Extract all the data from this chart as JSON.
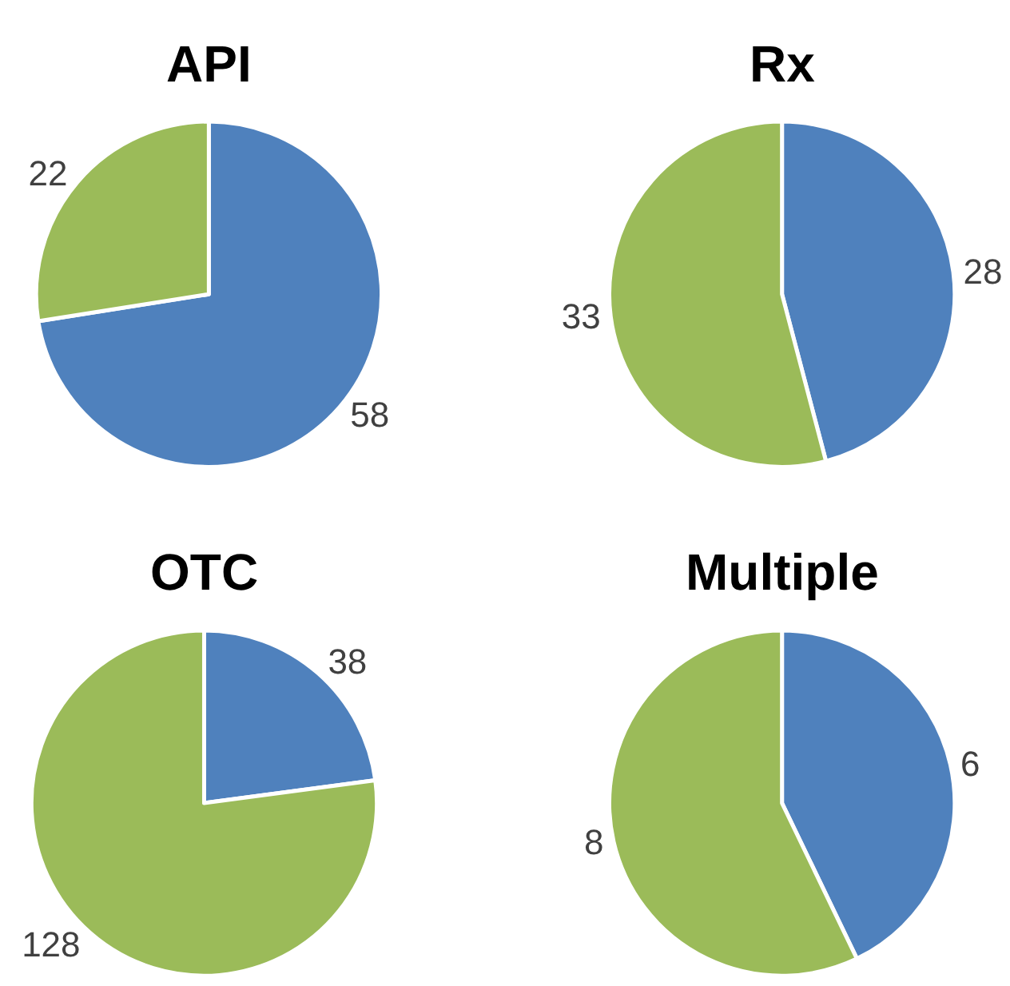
{
  "chart_data": [
    {
      "type": "pie",
      "title": "API",
      "categories": [
        null,
        null
      ],
      "values": [
        58,
        22
      ],
      "colors": [
        "#4f81bd",
        "#9bbb59"
      ],
      "data_labels": true
    },
    {
      "type": "pie",
      "title": "Rx",
      "categories": [
        null,
        null
      ],
      "values": [
        28,
        33
      ],
      "colors": [
        "#4f81bd",
        "#9bbb59"
      ],
      "data_labels": true
    },
    {
      "type": "pie",
      "title": "OTC",
      "categories": [
        null,
        null
      ],
      "values": [
        38,
        128
      ],
      "colors": [
        "#4f81bd",
        "#9bbb59"
      ],
      "data_labels": true
    },
    {
      "type": "pie",
      "title": "Multiple",
      "categories": [
        null,
        null
      ],
      "values": [
        6,
        8
      ],
      "colors": [
        "#4f81bd",
        "#9bbb59"
      ],
      "data_labels": true
    }
  ]
}
